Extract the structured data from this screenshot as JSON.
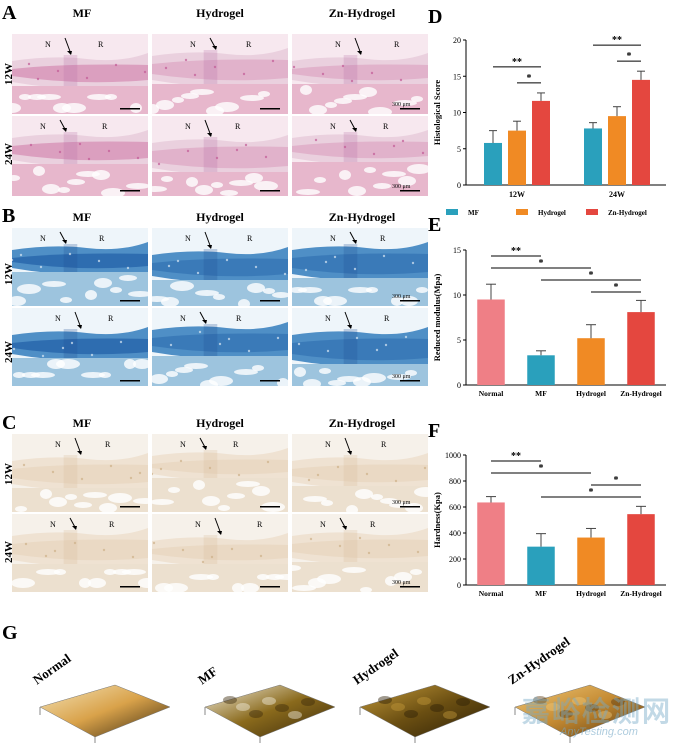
{
  "panels": {
    "A": "A",
    "B": "B",
    "C": "C",
    "D": "D",
    "E": "E",
    "F": "F",
    "G": "G"
  },
  "columns": [
    "MF",
    "Hydrogel",
    "Zn-Hydrogel"
  ],
  "rows": [
    "12W",
    "24W"
  ],
  "markers": {
    "n": "N",
    "r": "R"
  },
  "scale_text": "300 μm",
  "surface_titles": [
    "Normal",
    "MF",
    "Hydrogel",
    "Zn-Hydrogel"
  ],
  "watermark": {
    "cn": "嘉峪检测网",
    "en": "AnyTesting.com"
  },
  "colors": {
    "mf": "#2aa0bc",
    "hydrogel": "#f08a24",
    "zn": "#e4473f",
    "normal": "#ef7f86"
  },
  "chart_data": [
    {
      "panel": "D",
      "type": "bar",
      "ylabel": "Histological Score",
      "ylim": [
        0,
        20
      ],
      "yticks": [
        0,
        5,
        10,
        15,
        20
      ],
      "categories": [
        "12W",
        "24W"
      ],
      "series": [
        {
          "name": "MF",
          "values": [
            5.8,
            7.8
          ],
          "errors": [
            1.7,
            0.8
          ],
          "color": "#2aa0bc"
        },
        {
          "name": "Hydrogel",
          "values": [
            7.5,
            9.5
          ],
          "errors": [
            1.3,
            1.3
          ],
          "color": "#f08a24"
        },
        {
          "name": "Zn-Hydrogel",
          "values": [
            11.6,
            14.5
          ],
          "errors": [
            1.1,
            1.2
          ],
          "color": "#e4473f"
        }
      ],
      "significance": [
        {
          "group": 0,
          "from": 0,
          "to": 2,
          "label": "**"
        },
        {
          "group": 0,
          "from": 1,
          "to": 2,
          "label": "*"
        },
        {
          "group": 1,
          "from": 0,
          "to": 2,
          "label": "**"
        },
        {
          "group": 1,
          "from": 1,
          "to": 2,
          "label": "*"
        }
      ]
    },
    {
      "panel": "E",
      "type": "bar",
      "ylabel": "Reduced modulus(Mpa)",
      "ylim": [
        0,
        15
      ],
      "yticks": [
        0,
        5,
        10,
        15
      ],
      "categories": [
        "Normal",
        "MF",
        "Hydrogel",
        "Zn-Hydrogel"
      ],
      "values": [
        9.5,
        3.3,
        5.2,
        8.1
      ],
      "errors": [
        1.7,
        0.5,
        1.5,
        1.3
      ],
      "colors": [
        "#ef7f86",
        "#2aa0bc",
        "#f08a24",
        "#e4473f"
      ],
      "significance": [
        {
          "from": 0,
          "to": 1,
          "label": "**"
        },
        {
          "from": 0,
          "to": 2,
          "label": "*"
        },
        {
          "from": 1,
          "to": 3,
          "label": "*"
        },
        {
          "from": 2,
          "to": 3,
          "label": "*"
        }
      ]
    },
    {
      "panel": "F",
      "type": "bar",
      "ylabel": "Hardness(Kpa)",
      "ylim": [
        0,
        1000
      ],
      "yticks": [
        0,
        200,
        400,
        600,
        800,
        1000
      ],
      "categories": [
        "Normal",
        "MF",
        "Hydrogel",
        "Zn-Hydrogel"
      ],
      "values": [
        635,
        295,
        365,
        545
      ],
      "errors": [
        45,
        100,
        70,
        60
      ],
      "colors": [
        "#ef7f86",
        "#2aa0bc",
        "#f08a24",
        "#e4473f"
      ],
      "significance": [
        {
          "from": 0,
          "to": 1,
          "label": "**"
        },
        {
          "from": 0,
          "to": 2,
          "label": "*"
        },
        {
          "from": 2,
          "to": 3,
          "label": "*"
        },
        {
          "from": 1,
          "to": 3,
          "label": "*"
        }
      ]
    }
  ]
}
